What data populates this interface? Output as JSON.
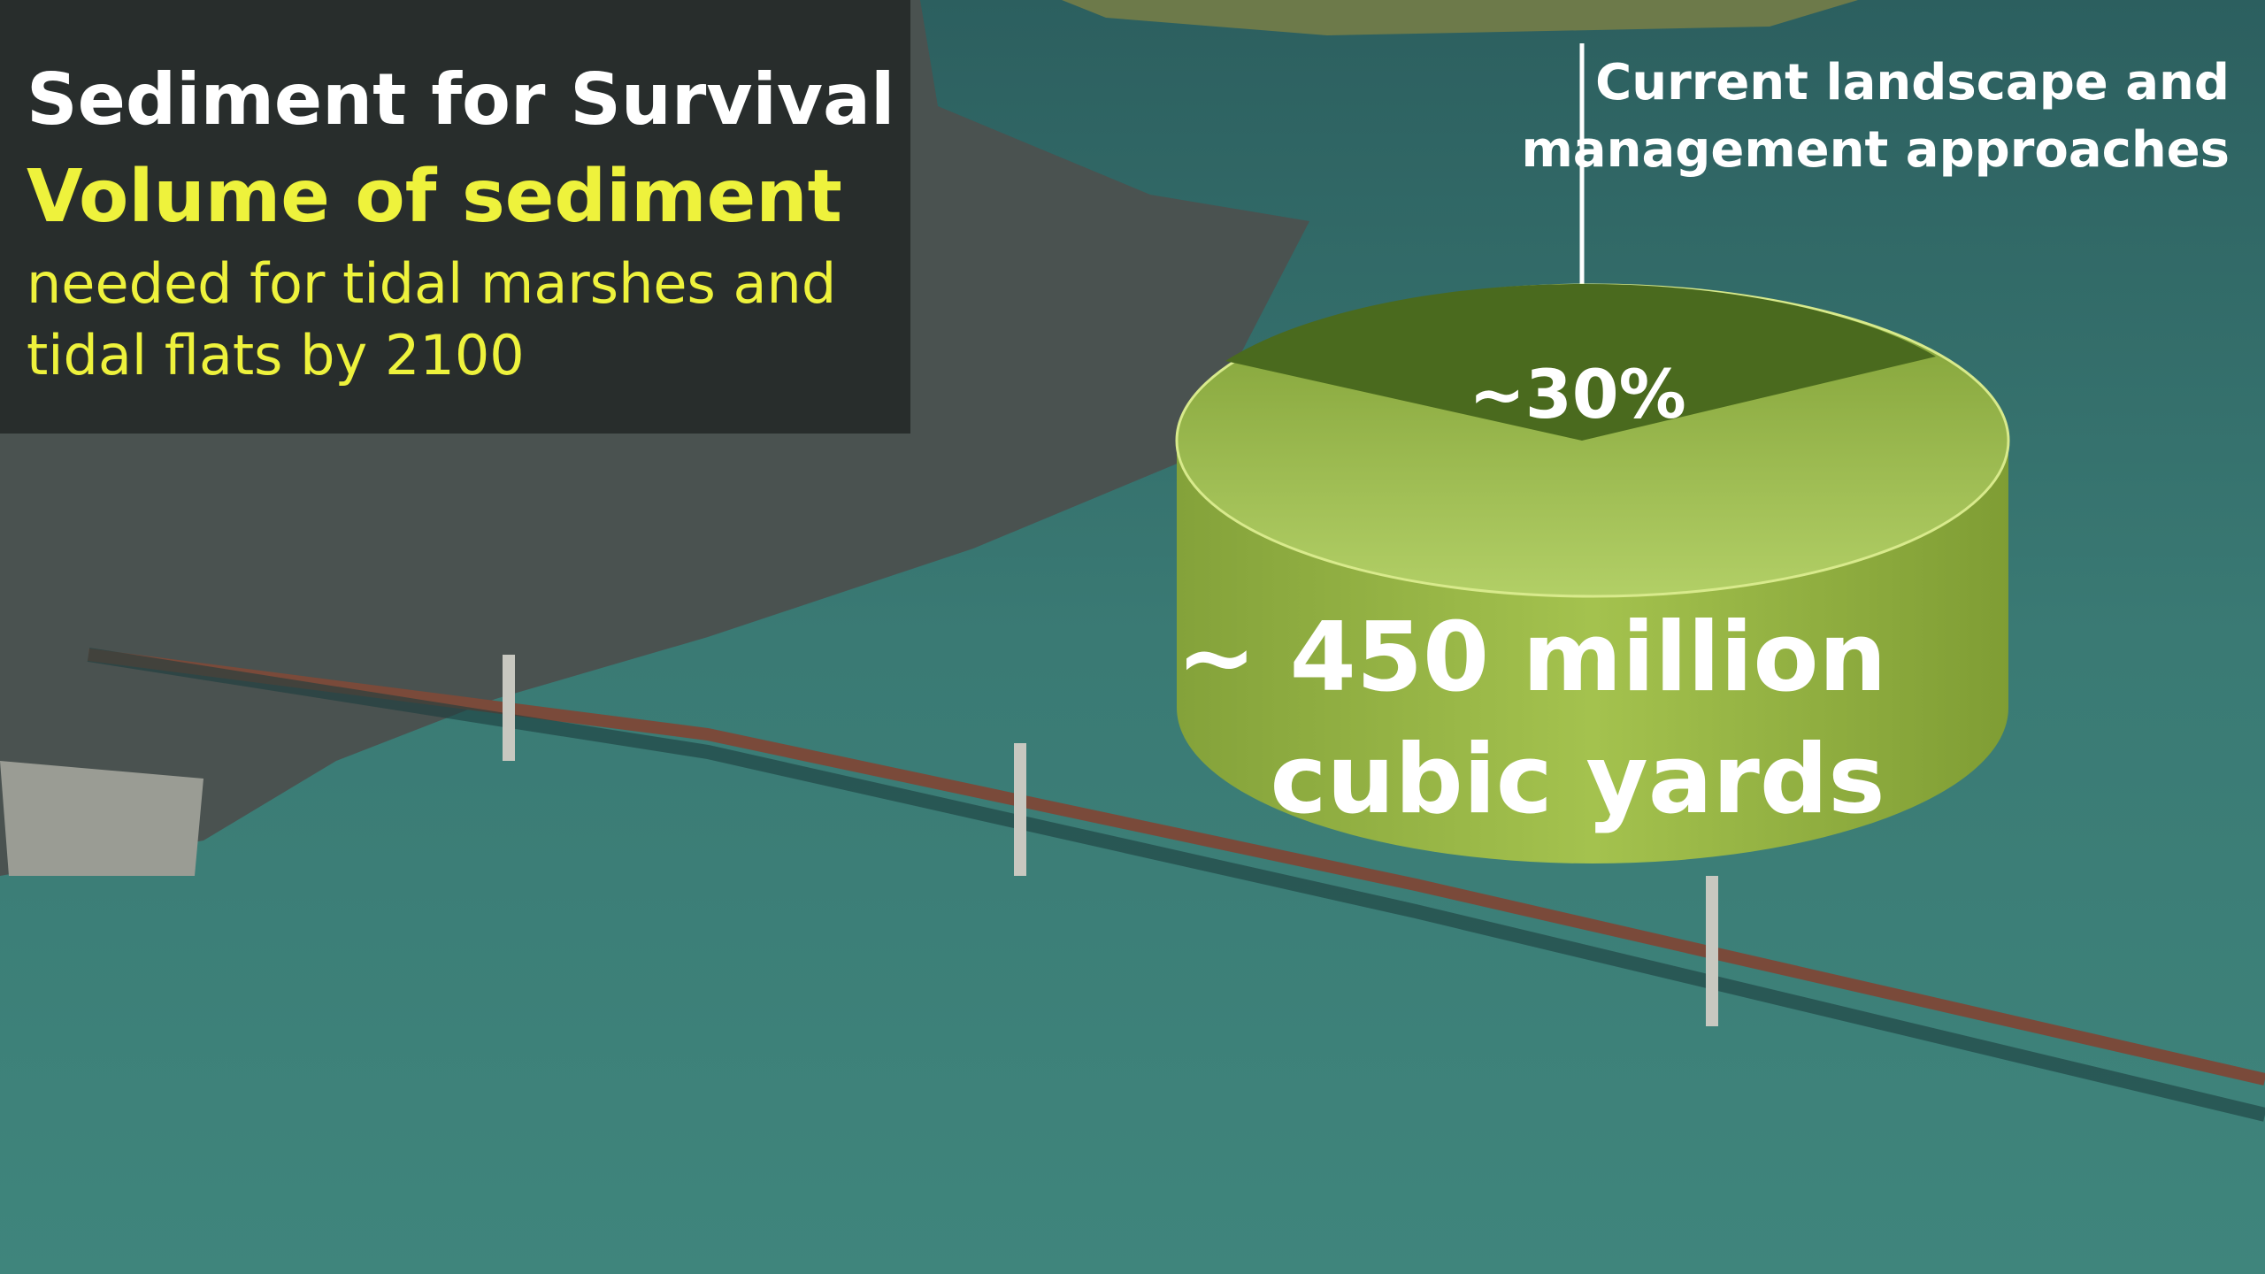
{
  "header": {
    "title": "Sediment for Survival",
    "subtitle": "Volume of sediment",
    "description": [
      "needed for tidal marshes and",
      "tidal flats by 2100"
    ]
  },
  "callout": {
    "lines": [
      "Current landscape and",
      "management approaches"
    ]
  },
  "cylinder": {
    "slice_label": "~30%",
    "total_label": [
      "~ 450 million",
      "cubic yards"
    ]
  }
}
